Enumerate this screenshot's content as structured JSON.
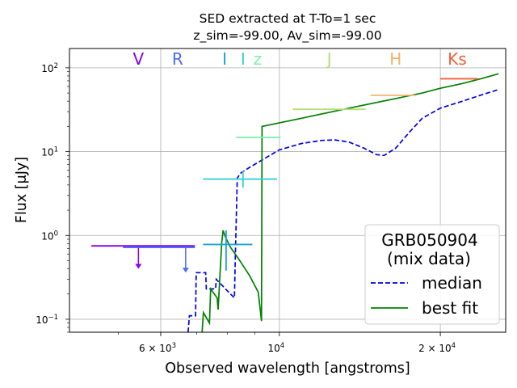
{
  "chart_data": {
    "type": "line",
    "title_line1": "SED extracted at T-To=1 sec",
    "title_line2": "z_sim=-99.00, Av_sim=-99.00",
    "xlabel": "Observed wavelength [angstroms]",
    "ylabel": "Flux [μJy]",
    "x_scale": "log",
    "y_scale": "log",
    "xlim": [
      4050,
      26500
    ],
    "ylim": [
      0.07,
      170
    ],
    "grid": true,
    "x_ticks": [
      {
        "value": 6000,
        "label": "6 × 10",
        "exp": "3"
      },
      {
        "value": 10000,
        "label": "10",
        "exp": "4"
      },
      {
        "value": 20000,
        "label": "2 × 10",
        "exp": "4"
      }
    ],
    "y_ticks": [
      {
        "value": 0.1,
        "label": "10",
        "exp": "−1"
      },
      {
        "value": 1,
        "label": "10",
        "exp": "0"
      },
      {
        "value": 10,
        "label": "10",
        "exp": "1"
      },
      {
        "value": 100,
        "label": "10",
        "exp": "2"
      }
    ],
    "filters": [
      {
        "name": "V",
        "x": 5450,
        "color": "#8a00e6"
      },
      {
        "name": "R",
        "x": 6450,
        "color": "#4a6cf7"
      },
      {
        "name": "I",
        "x": 7900,
        "color": "#1aa3d9"
      },
      {
        "name": "I",
        "x": 8550,
        "color": "#35d0d6"
      },
      {
        "name": "z",
        "x": 9100,
        "color": "#7ff0b0"
      },
      {
        "name": "J",
        "x": 12400,
        "color": "#b3e07a"
      },
      {
        "name": "H",
        "x": 16500,
        "color": "#f5b36a"
      },
      {
        "name": "Ks",
        "x": 21500,
        "color": "#f0603a"
      }
    ],
    "measurements": [
      {
        "filter": "V",
        "x": 5450,
        "xmin": 4450,
        "xmax": 6950,
        "y": 0.75,
        "upper_limit": true,
        "arrow_to": 0.4,
        "color": "#8a00e6"
      },
      {
        "filter": "R",
        "x": 6680,
        "xmin": 5100,
        "xmax": 6950,
        "y": 0.72,
        "upper_limit": true,
        "arrow_to": 0.36,
        "color": "#4a6cf7"
      },
      {
        "filter": "I",
        "x": 7950,
        "xmin": 7200,
        "xmax": 8900,
        "y": 0.78,
        "yerr_low": 0.38,
        "yerr_high": 1.15,
        "color": "#1aa3d9"
      },
      {
        "filter": "I",
        "x": 8550,
        "xmin": 7200,
        "xmax": 9900,
        "y": 4.7,
        "yerr_low": 3.7,
        "yerr_high": 5.9,
        "color": "#35d0d6"
      },
      {
        "filter": "z",
        "x": 9100,
        "xmin": 8300,
        "xmax": 10050,
        "y": 14.8,
        "color": "#7ff0b0"
      },
      {
        "filter": "J",
        "x": 12400,
        "xmin": 10600,
        "xmax": 14500,
        "y": 32,
        "color": "#b3e07a"
      },
      {
        "filter": "H",
        "x": 16500,
        "xmin": 14800,
        "xmax": 18000,
        "y": 47,
        "color": "#f5b36a"
      },
      {
        "filter": "Ks",
        "x": 21500,
        "xmin": 20000,
        "xmax": 23500,
        "y": 74,
        "color": "#f0603a"
      }
    ],
    "series": [
      {
        "name": "median",
        "style": "dashed",
        "color": "#0000ee",
        "points": [
          [
            6750,
            0.07
          ],
          [
            6790,
            0.11
          ],
          [
            6970,
            0.11
          ],
          [
            6990,
            0.36
          ],
          [
            7280,
            0.36
          ],
          [
            7300,
            0.23
          ],
          [
            7600,
            0.23
          ],
          [
            7620,
            0.3
          ],
          [
            8040,
            0.21
          ],
          [
            8240,
            0.18
          ],
          [
            8270,
            0.5
          ],
          [
            8340,
            4.8
          ],
          [
            8450,
            5.5
          ],
          [
            8800,
            6.5
          ],
          [
            9300,
            8
          ],
          [
            10000,
            10.5
          ],
          [
            11000,
            12.5
          ],
          [
            12000,
            13.6
          ],
          [
            12700,
            13.8
          ],
          [
            13500,
            13
          ],
          [
            14400,
            11
          ],
          [
            15200,
            9.2
          ],
          [
            15700,
            9
          ],
          [
            16500,
            11
          ],
          [
            17500,
            17
          ],
          [
            18500,
            25
          ],
          [
            20000,
            33
          ],
          [
            22000,
            40
          ],
          [
            24000,
            48
          ],
          [
            25700,
            55
          ]
        ]
      },
      {
        "name": "best fit",
        "style": "solid",
        "color": "#008000",
        "points": [
          [
            7170,
            0.07
          ],
          [
            7210,
            0.12
          ],
          [
            7400,
            0.09
          ],
          [
            7440,
            0.23
          ],
          [
            7650,
            0.18
          ],
          [
            7680,
            0.13
          ],
          [
            7800,
            0.8
          ],
          [
            7850,
            1.15
          ],
          [
            7930,
            0.95
          ],
          [
            8100,
            0.72
          ],
          [
            8400,
            0.52
          ],
          [
            8800,
            0.33
          ],
          [
            9130,
            0.21
          ],
          [
            9260,
            0.095
          ],
          [
            9280,
            20
          ],
          [
            11000,
            25
          ],
          [
            13500,
            33
          ],
          [
            16500,
            43
          ],
          [
            18500,
            50
          ],
          [
            20000,
            57
          ],
          [
            22000,
            65
          ],
          [
            24000,
            75
          ],
          [
            25700,
            85
          ]
        ]
      }
    ],
    "legend": {
      "placement": "lower-right",
      "title_line1": "GRB050904",
      "title_line2": "(mix data)",
      "entries": [
        {
          "label": "median",
          "style": "dashed",
          "color": "#0000ee"
        },
        {
          "label": "best fit",
          "style": "solid",
          "color": "#008000"
        }
      ]
    }
  }
}
